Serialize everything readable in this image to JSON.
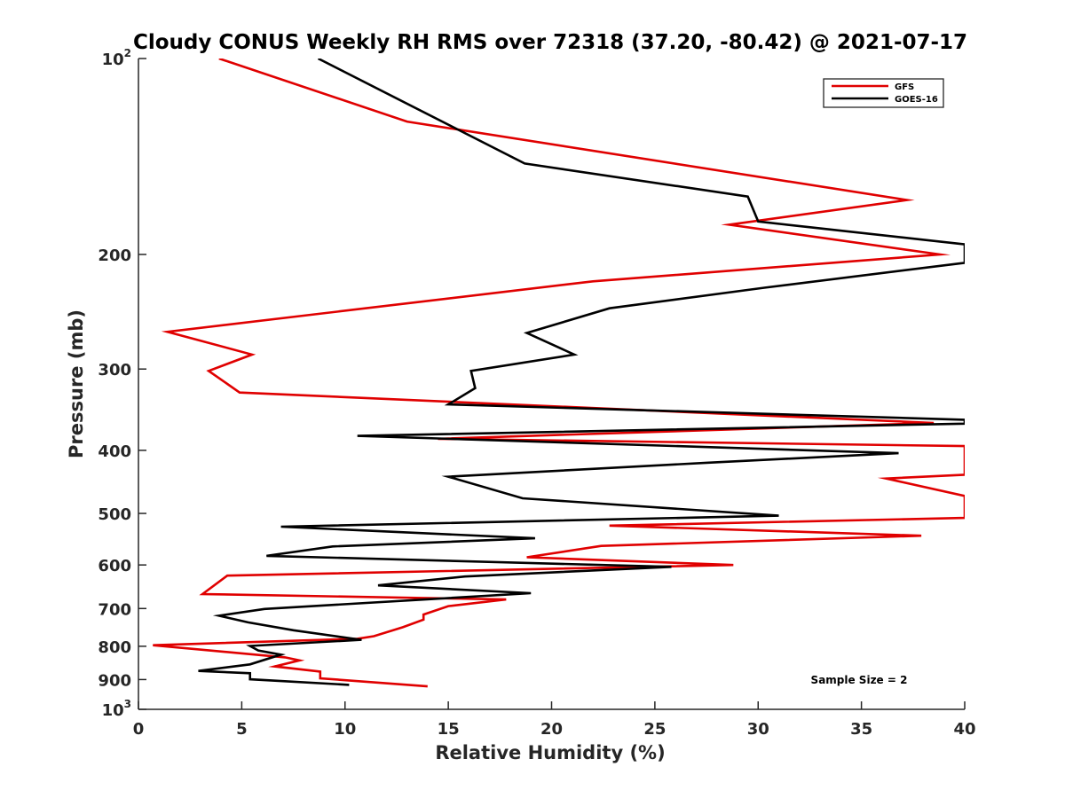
{
  "chart_data": {
    "type": "line",
    "title": "Cloudy CONUS Weekly RH RMS over 72318 (37.20, -80.42) @ 2021-07-17",
    "xlabel": "Relative Humidity (%)",
    "ylabel": "Pressure (mb)",
    "xlim": [
      0,
      40
    ],
    "ylim": [
      100,
      1000
    ],
    "yscale": "log",
    "y_reversed": true,
    "grid": false,
    "legend_position": "top-right",
    "x_ticks": [
      0,
      5,
      10,
      15,
      20,
      25,
      30,
      35,
      40
    ],
    "x_tick_labels": [
      "0",
      "5",
      "10",
      "15",
      "20",
      "25",
      "30",
      "35",
      "40"
    ],
    "y_ticks": [
      100,
      200,
      300,
      400,
      500,
      600,
      700,
      800,
      900,
      1000
    ],
    "y_tick_labels": [
      {
        "base": "10",
        "exp": "2"
      },
      {
        "base": "200",
        "exp": ""
      },
      {
        "base": "300",
        "exp": ""
      },
      {
        "base": "400",
        "exp": ""
      },
      {
        "base": "500",
        "exp": ""
      },
      {
        "base": "600",
        "exp": ""
      },
      {
        "base": "700",
        "exp": ""
      },
      {
        "base": "800",
        "exp": ""
      },
      {
        "base": "900",
        "exp": ""
      },
      {
        "base": "10",
        "exp": "3"
      }
    ],
    "annotation": "Sample Size = 2",
    "series": [
      {
        "name": "GFS",
        "color": "#e00000",
        "points": [
          [
            3.9,
            100
          ],
          [
            13,
            125
          ],
          [
            37.2,
            165
          ],
          [
            28.6,
            180
          ],
          [
            38.8,
            200
          ],
          [
            22,
            220
          ],
          [
            1.4,
            263
          ],
          [
            5.5,
            285
          ],
          [
            3.4,
            302
          ],
          [
            4.9,
            326
          ],
          [
            38.5,
            363
          ],
          [
            14.5,
            384
          ],
          [
            40,
            394
          ],
          [
            40,
            436
          ],
          [
            36.2,
            442
          ],
          [
            40,
            470
          ],
          [
            40,
            508
          ],
          [
            22.8,
            522
          ],
          [
            37.9,
            541
          ],
          [
            22.4,
            561
          ],
          [
            18.8,
            584
          ],
          [
            28.8,
            600
          ],
          [
            4.3,
            623
          ],
          [
            3.1,
            665
          ],
          [
            17.8,
            678
          ],
          [
            15,
            694
          ],
          [
            13.8,
            715
          ],
          [
            13.8,
            728
          ],
          [
            12.8,
            748
          ],
          [
            11.4,
            772
          ],
          [
            10.6,
            779
          ],
          [
            0.7,
            797
          ],
          [
            7.1,
            832
          ],
          [
            7.8,
            841
          ],
          [
            6.6,
            859
          ],
          [
            8.8,
            875
          ],
          [
            8.8,
            896
          ],
          [
            14,
            922
          ]
        ]
      },
      {
        "name": "GOES-16",
        "color": "#000000",
        "points": [
          [
            8.7,
            100
          ],
          [
            18.7,
            145
          ],
          [
            29.5,
            163
          ],
          [
            30,
            178
          ],
          [
            40,
            193
          ],
          [
            40,
            206
          ],
          [
            30.3,
            225
          ],
          [
            22.8,
            242
          ],
          [
            18.8,
            264
          ],
          [
            21.1,
            285
          ],
          [
            16.1,
            302
          ],
          [
            16.3,
            321
          ],
          [
            15,
            340
          ],
          [
            40,
            359
          ],
          [
            40,
            364
          ],
          [
            10.6,
            380
          ],
          [
            36.8,
            404
          ],
          [
            27.5,
            418
          ],
          [
            15,
            439
          ],
          [
            18.6,
            474
          ],
          [
            31,
            504
          ],
          [
            6.9,
            524
          ],
          [
            19.2,
            546
          ],
          [
            9.4,
            562
          ],
          [
            6.2,
            581
          ],
          [
            25.8,
            604
          ],
          [
            15.8,
            625
          ],
          [
            11.6,
            645
          ],
          [
            19,
            663
          ],
          [
            6.1,
            701
          ],
          [
            3.9,
            718
          ],
          [
            5.3,
            735
          ],
          [
            7.5,
            756
          ],
          [
            10.8,
            782
          ],
          [
            5.4,
            799
          ],
          [
            5.8,
            812
          ],
          [
            6.9,
            824
          ],
          [
            5.4,
            853
          ],
          [
            2.9,
            873
          ],
          [
            5.4,
            880
          ],
          [
            5.4,
            899
          ],
          [
            10.2,
            917
          ]
        ]
      }
    ]
  }
}
